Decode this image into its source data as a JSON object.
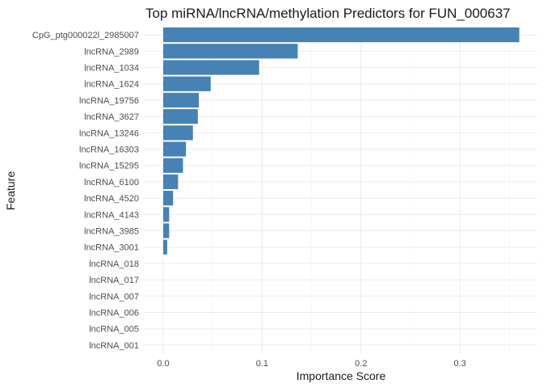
{
  "chart_data": {
    "type": "bar",
    "orientation": "horizontal",
    "title": "Top miRNA/lncRNA/methylation Predictors for FUN_000637",
    "xlabel": "Importance Score",
    "ylabel": "Feature",
    "xlim": [
      0,
      0.36
    ],
    "x_ticks": [
      0.0,
      0.1,
      0.2,
      0.3
    ],
    "x_tick_labels": [
      "0.0",
      "0.1",
      "0.2",
      "0.3"
    ],
    "grid": true,
    "bar_color": "#4682B4",
    "categories": [
      "CpG_ptg000022l_2985007",
      "lncRNA_2989",
      "lncRNA_1034",
      "lncRNA_1624",
      "lncRNA_19756",
      "lncRNA_3627",
      "lncRNA_13246",
      "lncRNA_16303",
      "lncRNA_15295",
      "lncRNA_6100",
      "lncRNA_4520",
      "lncRNA_4143",
      "lncRNA_3985",
      "lncRNA_3001",
      "lncRNA_018",
      "lncRNA_017",
      "lncRNA_007",
      "lncRNA_006",
      "lncRNA_005",
      "lncRNA_001"
    ],
    "values": [
      0.36,
      0.136,
      0.097,
      0.048,
      0.036,
      0.035,
      0.03,
      0.023,
      0.02,
      0.015,
      0.01,
      0.006,
      0.006,
      0.004,
      0,
      0,
      0,
      0,
      0,
      0
    ]
  }
}
